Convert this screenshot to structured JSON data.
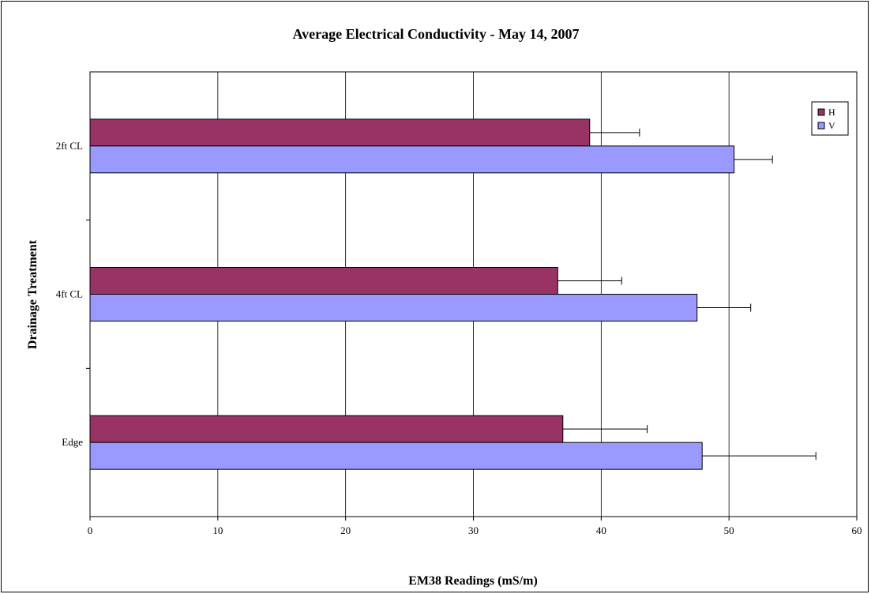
{
  "chart_data": {
    "type": "bar",
    "orientation": "horizontal",
    "title": "Average Electrical Conductivity - May 14, 2007",
    "xlabel": "EM38 Readings (mS/m)",
    "ylabel": "Drainage Treatment",
    "xlim": [
      0,
      60
    ],
    "x_ticks": [
      "0",
      "10",
      "20",
      "30",
      "40",
      "50",
      "60"
    ],
    "categories": [
      "2ft CL",
      "4ft CL",
      "Edge"
    ],
    "series": [
      {
        "name": "H",
        "color": "#993366",
        "values": [
          39.1,
          36.6,
          37.0
        ],
        "error": [
          3.9,
          5.0,
          6.6
        ]
      },
      {
        "name": "V",
        "color": "#9999ff",
        "values": [
          50.4,
          47.5,
          47.9
        ],
        "error": [
          3.0,
          4.2,
          8.9
        ]
      }
    ],
    "grid": "vertical",
    "legend": "top-right"
  }
}
